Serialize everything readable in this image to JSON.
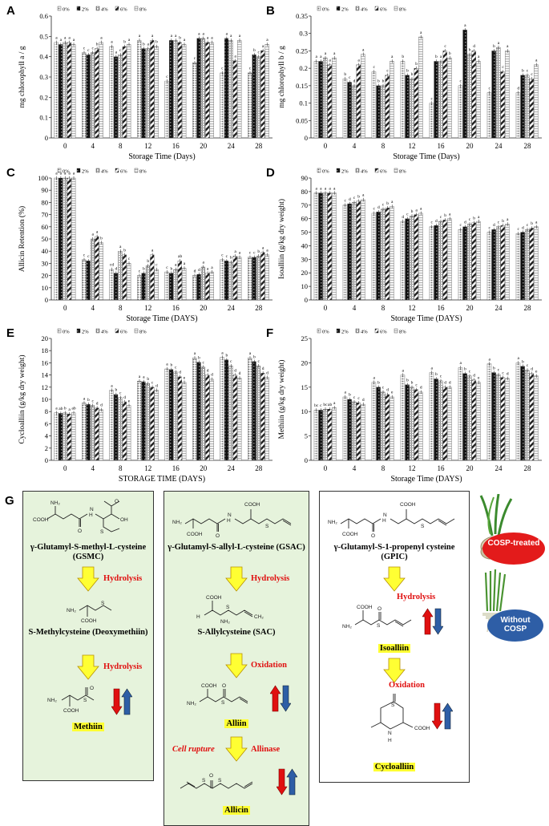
{
  "legend_labels": [
    "0%",
    "2%",
    "4%",
    "6%",
    "8%"
  ],
  "colors": {
    "box_green": "#e6f3dc",
    "red": "#e01010",
    "yellow": "#ffff33",
    "oval_red": "#e31b1b",
    "oval_blue": "#2e5ea6"
  },
  "chart_data": [
    {
      "panel": "A",
      "type": "bar",
      "ylabel": "mg chlorophyll a / g",
      "xlabel": "Storage Time (Days)",
      "categories": [
        "0",
        "4",
        "8",
        "12",
        "16",
        "20",
        "24",
        "28"
      ],
      "ylim": [
        0,
        0.6
      ],
      "yticks": [
        "0",
        "0.1",
        "0.2",
        "0.3",
        "0.4",
        "0.5",
        "0.6"
      ],
      "series": [
        {
          "name": "0%",
          "values": [
            0.47,
            0.42,
            0.45,
            0.48,
            0.28,
            0.37,
            0.32,
            0.32
          ]
        },
        {
          "name": "2%",
          "values": [
            0.46,
            0.41,
            0.4,
            0.44,
            0.48,
            0.49,
            0.49,
            0.41
          ]
        },
        {
          "name": "4%",
          "values": [
            0.47,
            0.42,
            0.41,
            0.44,
            0.48,
            0.49,
            0.48,
            0.4
          ]
        },
        {
          "name": "6%",
          "values": [
            0.47,
            0.44,
            0.45,
            0.48,
            0.47,
            0.47,
            0.38,
            0.43
          ]
        },
        {
          "name": "8%",
          "values": [
            0.46,
            0.47,
            0.46,
            0.45,
            0.46,
            0.47,
            0.48,
            0.46
          ]
        }
      ],
      "letters": [
        [
          "a",
          "a",
          "a",
          "a",
          "a"
        ],
        [
          "c",
          "c",
          "c",
          "b",
          "a"
        ],
        [
          "a",
          "a",
          "c",
          "b",
          "a"
        ],
        [
          "a",
          "b",
          "a",
          "a",
          "b"
        ],
        [
          "c",
          "a",
          "a",
          "b",
          "a"
        ],
        [
          "c",
          "a",
          "a",
          "a",
          "a"
        ],
        [
          "c",
          "a",
          "a",
          "a",
          "a"
        ],
        [
          "c",
          "b",
          "c",
          "a",
          "a"
        ]
      ]
    },
    {
      "panel": "B",
      "type": "bar",
      "ylabel": "mg chlorophyll b / g",
      "xlabel": "Storage Time (Days)",
      "categories": [
        "0",
        "4",
        "8",
        "12",
        "16",
        "20",
        "24",
        "28"
      ],
      "ylim": [
        0,
        0.35
      ],
      "yticks": [
        "0",
        "0.05",
        "0.1",
        "0.15",
        "0.2",
        "0.25",
        "0.3",
        "0.35"
      ],
      "series": [
        {
          "name": "0%",
          "values": [
            0.22,
            0.17,
            0.19,
            0.22,
            0.1,
            0.15,
            0.13,
            0.13
          ]
        },
        {
          "name": "2%",
          "values": [
            0.22,
            0.16,
            0.15,
            0.18,
            0.22,
            0.31,
            0.25,
            0.18
          ]
        },
        {
          "name": "4%",
          "values": [
            0.23,
            0.15,
            0.15,
            0.17,
            0.22,
            0.24,
            0.26,
            0.18
          ]
        },
        {
          "name": "6%",
          "values": [
            0.21,
            0.21,
            0.18,
            0.2,
            0.25,
            0.25,
            0.19,
            0.17
          ]
        },
        {
          "name": "8%",
          "values": [
            0.23,
            0.24,
            0.22,
            0.29,
            0.23,
            0.22,
            0.25,
            0.21
          ]
        }
      ],
      "letters": [
        [
          "a",
          "a",
          "a",
          "a",
          "a"
        ],
        [
          "b",
          "c",
          "d",
          "a",
          "a"
        ],
        [
          "c",
          "b",
          "b",
          "c",
          "a"
        ],
        [
          "b",
          "b",
          "b",
          "b",
          "a"
        ],
        [
          "c",
          "b",
          "a",
          "c",
          "b"
        ],
        [
          "c",
          "a",
          "b",
          "d",
          "a"
        ],
        [
          "c",
          "b",
          "a",
          "c",
          "a"
        ],
        [
          "d",
          "b",
          "c",
          "c",
          "a"
        ]
      ]
    },
    {
      "panel": "C",
      "type": "bar",
      "ylabel": "Allicin Retention (%)",
      "xlabel": "Storage Time (DAYS)",
      "categories": [
        "0",
        "4",
        "8",
        "12",
        "16",
        "20",
        "24",
        "28"
      ],
      "ylim": [
        0,
        100
      ],
      "yticks": [
        "0",
        "10",
        "20",
        "30",
        "40",
        "50",
        "60",
        "70",
        "80",
        "90",
        "100"
      ],
      "series": [
        {
          "name": "0%",
          "values": [
            100,
            33,
            25,
            20,
            23,
            20,
            33,
            35
          ]
        },
        {
          "name": "2%",
          "values": [
            100,
            32,
            22,
            22,
            22,
            21,
            32,
            35
          ]
        },
        {
          "name": "4%",
          "values": [
            100,
            50,
            40,
            28,
            25,
            27,
            31,
            36
          ]
        },
        {
          "name": "6%",
          "values": [
            100,
            52,
            37,
            37,
            32,
            22,
            36,
            39
          ]
        },
        {
          "name": "8%",
          "values": [
            100,
            47,
            30,
            25,
            26,
            23,
            35,
            37
          ]
        }
      ],
      "letters": [
        [
          "a",
          "a",
          "a",
          "a",
          "a"
        ],
        [
          "c",
          "c",
          "a",
          "a",
          "b"
        ],
        [
          "cd",
          "d",
          "a",
          "b",
          "c"
        ],
        [
          "c",
          "b",
          "b",
          "a",
          "c"
        ],
        [
          "c",
          "b",
          "a",
          "ab",
          "a"
        ],
        [
          "d",
          "d",
          "a",
          "a",
          "a"
        ],
        [
          "c",
          "c",
          "b",
          "a",
          "a"
        ],
        [
          "c",
          "c",
          "b",
          "a",
          "a"
        ]
      ]
    },
    {
      "panel": "D",
      "type": "bar",
      "ylabel": "Isoalliin (g/kg dry weight)",
      "xlabel": "Storage Time (DAYS)",
      "categories": [
        "0",
        "4",
        "8",
        "12",
        "16",
        "20",
        "24",
        "28"
      ],
      "ylim": [
        0,
        90
      ],
      "yticks": [
        "0",
        "10",
        "20",
        "30",
        "40",
        "50",
        "60",
        "70",
        "80",
        "90"
      ],
      "series": [
        {
          "name": "0%",
          "values": [
            79,
            70,
            64,
            58,
            54,
            52,
            50,
            49
          ]
        },
        {
          "name": "2%",
          "values": [
            79,
            71,
            65,
            60,
            55,
            54,
            52,
            50
          ]
        },
        {
          "name": "4%",
          "values": [
            79,
            72,
            67,
            62,
            58,
            56,
            54,
            52
          ]
        },
        {
          "name": "6%",
          "values": [
            79,
            73,
            68,
            63,
            59,
            57,
            55,
            53
          ]
        },
        {
          "name": "8%",
          "values": [
            79,
            74,
            69,
            64,
            60,
            58,
            56,
            54
          ]
        }
      ],
      "letters": [
        [
          "a",
          "a",
          "a",
          "a",
          "a"
        ],
        [
          "c",
          "d",
          "c",
          "b",
          "a"
        ],
        [
          "c",
          "d",
          "c",
          "b",
          "a"
        ],
        [
          "d",
          "c",
          "b",
          "a",
          "a"
        ],
        [
          "c",
          "d",
          "c",
          "b",
          "a"
        ],
        [
          "c",
          "d",
          "c",
          "b",
          "a"
        ],
        [
          "c",
          "d",
          "c",
          "b",
          "a"
        ],
        [
          "c",
          "d",
          "c",
          "b",
          "a"
        ]
      ]
    },
    {
      "panel": "E",
      "type": "bar",
      "ylabel": "Cycloalliin (g/kg dry weight)",
      "xlabel": "STORAGE TIME (DAYS)",
      "categories": [
        "0",
        "4",
        "8",
        "12",
        "16",
        "20",
        "24",
        "28"
      ],
      "ylim": [
        0,
        20
      ],
      "yticks": [
        "0",
        "2",
        "4",
        "6",
        "8",
        "10",
        "12",
        "14",
        "16",
        "18",
        "20"
      ],
      "series": [
        {
          "name": "0%",
          "values": [
            7.8,
            9.4,
            11.5,
            13.0,
            15.0,
            16.8,
            16.9,
            16.8
          ]
        },
        {
          "name": "2%",
          "values": [
            7.7,
            9.2,
            10.8,
            12.9,
            14.9,
            16.1,
            16.5,
            16.2
          ]
        },
        {
          "name": "4%",
          "values": [
            7.8,
            9.0,
            10.3,
            12.6,
            14.5,
            15.3,
            15.5,
            15.5
          ]
        },
        {
          "name": "6%",
          "values": [
            7.6,
            8.6,
            9.6,
            12.0,
            13.7,
            14.0,
            14.0,
            14.3
          ]
        },
        {
          "name": "8%",
          "values": [
            7.8,
            8.3,
            9.0,
            11.5,
            12.8,
            13.3,
            13.5,
            13.6
          ]
        }
      ],
      "letters": [
        [
          "a",
          "ab",
          "b",
          "a",
          "ab"
        ],
        [
          "a",
          "b",
          "c",
          "d",
          "d"
        ],
        [
          "a",
          "b",
          "c",
          "d",
          "e"
        ],
        [
          "a",
          "a",
          "b",
          "c",
          "d"
        ],
        [
          "a",
          "b",
          "c",
          "d",
          "e"
        ],
        [
          "a",
          "b",
          "c",
          "d",
          "d"
        ],
        [
          "a",
          "b",
          "c",
          "d",
          "d"
        ],
        [
          "a",
          "b",
          "c",
          "d",
          "d"
        ]
      ]
    },
    {
      "panel": "F",
      "type": "bar",
      "ylabel": "Methiin (g/kg dry weight)",
      "xlabel": "Storage Time (DAYS)",
      "categories": [
        "0",
        "4",
        "8",
        "12",
        "16",
        "20",
        "24",
        "28"
      ],
      "ylim": [
        0,
        25
      ],
      "yticks": [
        "0",
        "5",
        "10",
        "15",
        "20",
        "25"
      ],
      "series": [
        {
          "name": "0%",
          "values": [
            10.3,
            13.0,
            16.0,
            17.5,
            18.0,
            19.0,
            19.8,
            20.0
          ]
        },
        {
          "name": "2%",
          "values": [
            10.3,
            12.5,
            15.0,
            15.5,
            16.7,
            17.8,
            18.0,
            19.3
          ]
        },
        {
          "name": "4%",
          "values": [
            10.5,
            12.0,
            14.0,
            15.0,
            16.3,
            17.3,
            17.6,
            18.5
          ]
        },
        {
          "name": "6%",
          "values": [
            10.5,
            11.8,
            13.5,
            14.5,
            15.0,
            16.5,
            17.0,
            17.8
          ]
        },
        {
          "name": "8%",
          "values": [
            10.8,
            11.5,
            13.0,
            14.0,
            15.0,
            16.0,
            16.8,
            17.3
          ]
        }
      ],
      "letters": [
        [
          "bc",
          "c",
          "bc",
          "ab",
          "a"
        ],
        [
          "a",
          "b",
          "c",
          "c",
          "d"
        ],
        [
          "a",
          "b",
          "c",
          "d",
          "e"
        ],
        [
          "a",
          "b",
          "b",
          "c",
          "d"
        ],
        [
          "a",
          "b",
          "c",
          "d",
          "d"
        ],
        [
          "a",
          "b",
          "c",
          "d",
          "e"
        ],
        [
          "a",
          "b",
          "c",
          "c",
          "d"
        ],
        [
          "a",
          "b",
          "c",
          "d",
          "e"
        ]
      ]
    }
  ],
  "panel_g": {
    "label": "G",
    "box1": {
      "title": "γ-Glutamyl-S-methyl-L-cysteine (GSMC)",
      "step1": "Hydrolysis",
      "mid": "S-Methylcysteine (Deoxymethiin)",
      "step2": "Hydrolysis",
      "product": "Methiin"
    },
    "box2": {
      "title": "γ-Glutamyl-S-allyl-L-cysteine (GSAC)",
      "step1": "Hydrolysis",
      "mid": "S-Allylcysteine (SAC)",
      "step2": "Oxidation",
      "product": "Alliin",
      "step3a": "Cell rupture",
      "step3b": "Allinase",
      "final": "Allicin"
    },
    "box3": {
      "title": "γ-Glutamyl-S-1-propenyl cysteine (GPIC)",
      "step1": "Hydrolysis",
      "mid": "Isoalliin",
      "step2": "Oxidation",
      "product": "Cycloalliin"
    },
    "oval1": "COSP-treated",
    "oval2": "Without COSP",
    "atoms": {
      "nh2": "NH₂",
      "cooh": "COOH",
      "oh": "OH",
      "o": "O",
      "h": "H",
      "n": "N",
      "ch2": "CH₂",
      "s": "S"
    }
  }
}
